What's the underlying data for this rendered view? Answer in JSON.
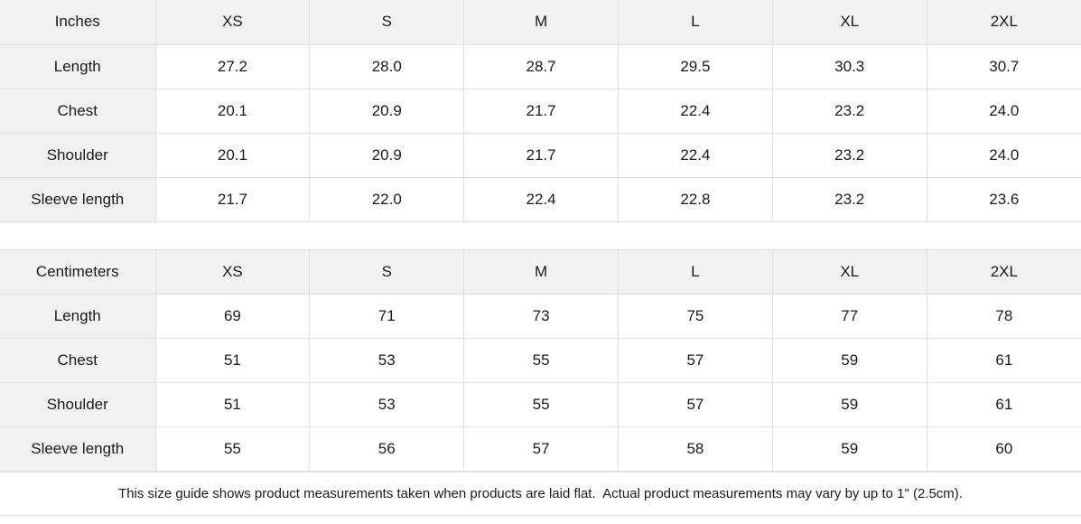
{
  "inches_table": {
    "unit_label": "Inches",
    "sizes": [
      "XS",
      "S",
      "M",
      "L",
      "XL",
      "2XL"
    ],
    "rows": [
      {
        "label": "Length",
        "values": [
          "27.2",
          "28.0",
          "28.7",
          "29.5",
          "30.3",
          "30.7"
        ]
      },
      {
        "label": "Chest",
        "values": [
          "20.1",
          "20.9",
          "21.7",
          "22.4",
          "23.2",
          "24.0"
        ]
      },
      {
        "label": "Shoulder",
        "values": [
          "20.1",
          "20.9",
          "21.7",
          "22.4",
          "23.2",
          "24.0"
        ]
      },
      {
        "label": "Sleeve length",
        "values": [
          "21.7",
          "22.0",
          "22.4",
          "22.8",
          "23.2",
          "23.6"
        ]
      }
    ]
  },
  "centimeters_table": {
    "unit_label": "Centimeters",
    "sizes": [
      "XS",
      "S",
      "M",
      "L",
      "XL",
      "2XL"
    ],
    "rows": [
      {
        "label": "Length",
        "values": [
          "69",
          "71",
          "73",
          "75",
          "77",
          "78"
        ]
      },
      {
        "label": "Chest",
        "values": [
          "51",
          "53",
          "55",
          "57",
          "59",
          "61"
        ]
      },
      {
        "label": "Shoulder",
        "values": [
          "51",
          "53",
          "55",
          "57",
          "59",
          "61"
        ]
      },
      {
        "label": "Sleeve length",
        "values": [
          "55",
          "56",
          "57",
          "58",
          "59",
          "60"
        ]
      }
    ]
  },
  "footer": {
    "note": "This size guide shows product measurements taken when products are laid flat.  Actual product measurements may vary by up to 1\" (2.5cm)."
  },
  "colors": {
    "header_bg": "#f1f1f1",
    "border": "#e0e0e0",
    "text": "#1a1a1a"
  }
}
